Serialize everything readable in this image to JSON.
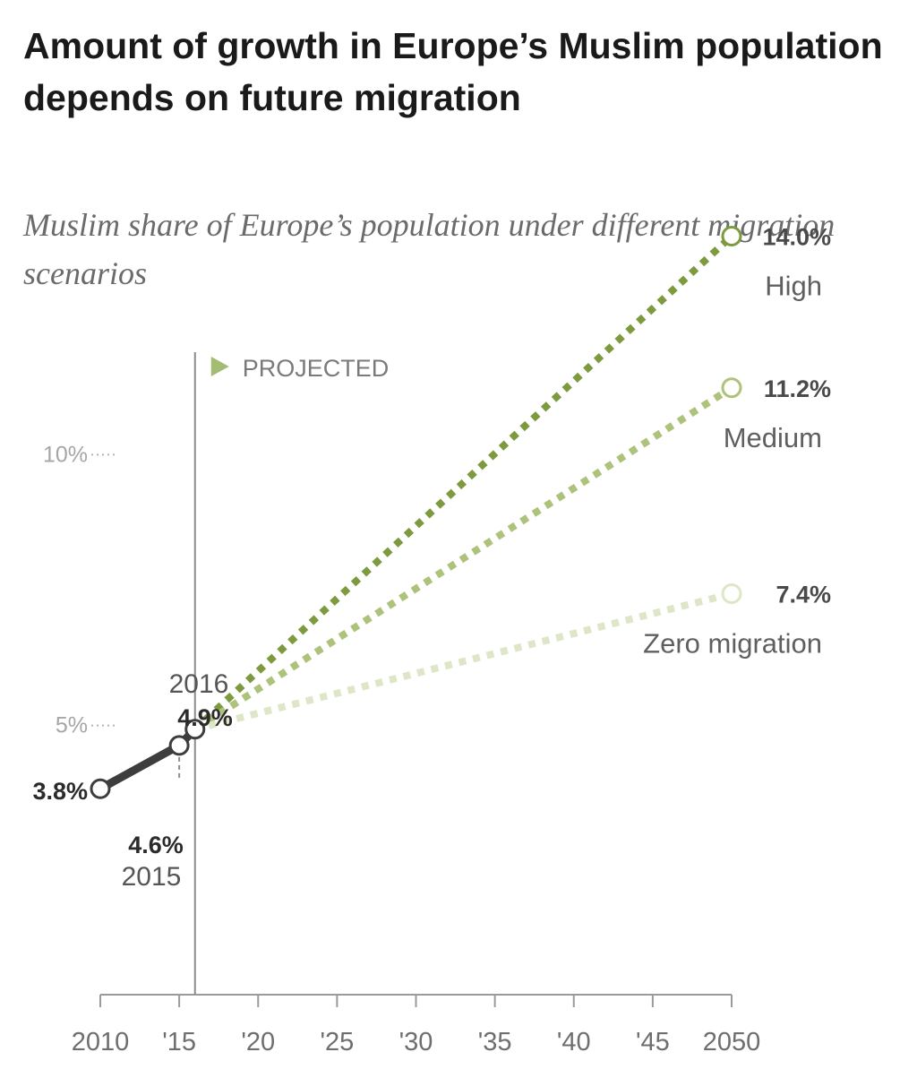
{
  "title": "Amount of growth in Europe’s Muslim population depends on future migration",
  "subtitle": "Muslim share of Europe’s population under different migration scenarios",
  "chart_data": {
    "type": "line",
    "title": "Amount of growth in Europe’s Muslim population depends on future migration",
    "subtitle": "Muslim share of Europe’s population under different migration scenarios",
    "xlim": [
      2010,
      2050
    ],
    "ylim": [
      0,
      15
    ],
    "x_ticks": [
      {
        "value": 2010,
        "label": "2010"
      },
      {
        "value": 2015,
        "label": "'15"
      },
      {
        "value": 2020,
        "label": "'20"
      },
      {
        "value": 2025,
        "label": "'25"
      },
      {
        "value": 2030,
        "label": "'30"
      },
      {
        "value": 2035,
        "label": "'35"
      },
      {
        "value": 2040,
        "label": "'40"
      },
      {
        "value": 2045,
        "label": "'45"
      },
      {
        "value": 2050,
        "label": "2050"
      }
    ],
    "y_ticks": [
      {
        "value": 5,
        "label": "5%"
      },
      {
        "value": 10,
        "label": "10%"
      }
    ],
    "projected_label": "PROJECTED",
    "projection_start": 2016,
    "historical": {
      "points": [
        {
          "x": 2010,
          "y": 3.8,
          "value_label": "3.8%"
        },
        {
          "x": 2015,
          "y": 4.6,
          "value_label": "4.6%",
          "year_label": "2015"
        },
        {
          "x": 2016,
          "y": 4.9,
          "value_label": "4.9%",
          "year_label": "2016"
        }
      ],
      "color": "#3d3d3d"
    },
    "series": [
      {
        "name": "High",
        "x": [
          2016,
          2050
        ],
        "y": [
          4.9,
          14.0
        ],
        "end_label": "14.0%",
        "color": "#7d9a3f"
      },
      {
        "name": "Medium",
        "x": [
          2016,
          2050
        ],
        "y": [
          4.9,
          11.2
        ],
        "end_label": "11.2%",
        "color": "#adc27a"
      },
      {
        "name": "Zero migration",
        "x": [
          2016,
          2050
        ],
        "y": [
          4.9,
          7.4
        ],
        "end_label": "7.4%",
        "color": "#dde6c6"
      }
    ]
  }
}
